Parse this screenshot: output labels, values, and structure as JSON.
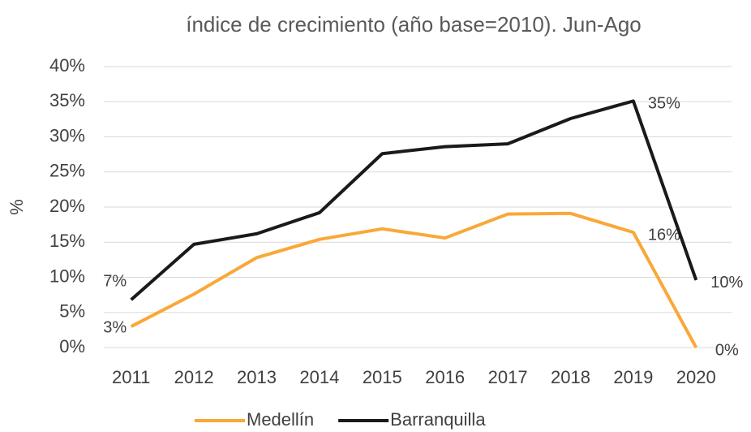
{
  "chart_data": {
    "type": "line",
    "title": "índice de crecimiento (año base=2010). Jun-Ago",
    "y_label": "%",
    "categories": [
      "2011",
      "2012",
      "2013",
      "2014",
      "2015",
      "2016",
      "2017",
      "2018",
      "2019",
      "2020"
    ],
    "series": [
      {
        "name": "Medellín",
        "color": "#f9a838",
        "values": [
          3.0,
          7.6,
          12.8,
          15.4,
          16.9,
          15.6,
          19.0,
          19.1,
          16.4,
          0
        ],
        "value_labels": [
          "3%",
          null,
          null,
          null,
          null,
          null,
          null,
          null,
          "16%",
          "0%"
        ]
      },
      {
        "name": "Barranquilla",
        "color": "#1a1a1a",
        "values": [
          6.8,
          14.7,
          16.2,
          19.2,
          27.6,
          28.6,
          29.0,
          32.6,
          35.1,
          9.6
        ],
        "value_labels": [
          "7%",
          null,
          null,
          null,
          null,
          null,
          null,
          null,
          "35%",
          "10%"
        ]
      }
    ],
    "ylim": [
      0,
      40
    ],
    "yticks": [
      {
        "value": 0,
        "label": "0%"
      },
      {
        "value": 5,
        "label": "5%"
      },
      {
        "value": 10,
        "label": "10%"
      },
      {
        "value": 15,
        "label": "15%"
      },
      {
        "value": 20,
        "label": "20%"
      },
      {
        "value": 25,
        "label": "25%"
      },
      {
        "value": 30,
        "label": "30%"
      },
      {
        "value": 35,
        "label": "35%"
      },
      {
        "value": 40,
        "label": "40%"
      }
    ],
    "grid": true,
    "legend": "bottom"
  }
}
